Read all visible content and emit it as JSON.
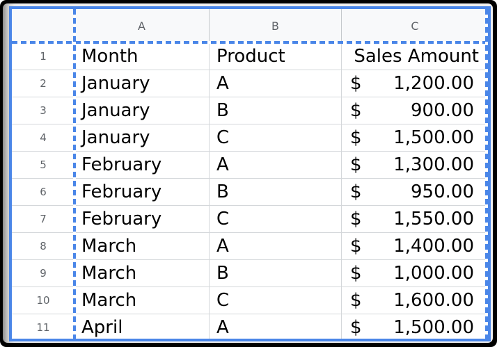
{
  "sheet": {
    "column_headers": [
      {
        "label": "A"
      },
      {
        "label": "B"
      },
      {
        "label": "C"
      }
    ],
    "rows": [
      {
        "n": "1",
        "a": "Month",
        "b": "Product",
        "c_text": "Sales Amount"
      },
      {
        "n": "2",
        "a": "January",
        "b": "A",
        "cur": "$",
        "amt": "1,200.00"
      },
      {
        "n": "3",
        "a": "January",
        "b": "B",
        "cur": "$",
        "amt": "900.00"
      },
      {
        "n": "4",
        "a": "January",
        "b": "C",
        "cur": "$",
        "amt": "1,500.00"
      },
      {
        "n": "5",
        "a": "February",
        "b": "A",
        "cur": "$",
        "amt": "1,300.00"
      },
      {
        "n": "6",
        "a": "February",
        "b": "B",
        "cur": "$",
        "amt": "950.00"
      },
      {
        "n": "7",
        "a": "February",
        "b": "C",
        "cur": "$",
        "amt": "1,550.00"
      },
      {
        "n": "8",
        "a": "March",
        "b": "A",
        "cur": "$",
        "amt": "1,400.00"
      },
      {
        "n": "9",
        "a": "March",
        "b": "B",
        "cur": "$",
        "amt": "1,000.00"
      },
      {
        "n": "10",
        "a": "March",
        "b": "C",
        "cur": "$",
        "amt": "1,600.00"
      },
      {
        "n": "11",
        "a": "April",
        "b": "A",
        "cur": "$",
        "amt": "1,500.00"
      }
    ],
    "colors": {
      "selection_blue": "#4a86e8",
      "header_bg": "#f8f9fa",
      "header_text": "#5f6368",
      "gridline": "#d4d7da",
      "header_gridline": "#c5c9cc",
      "cell_text": "#000000"
    }
  }
}
